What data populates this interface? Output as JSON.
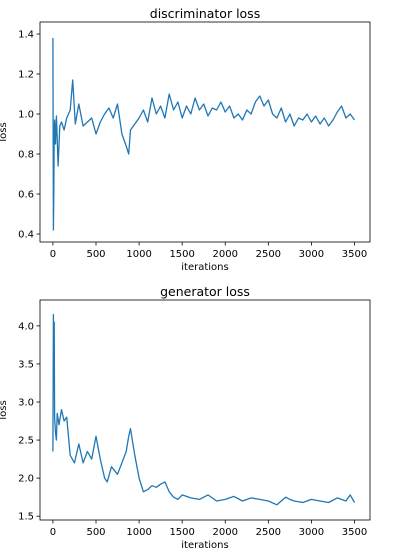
{
  "chart_data": [
    {
      "type": "line",
      "title": "discriminator loss",
      "xlabel": "iterations",
      "ylabel": "loss",
      "xlim": [
        -150,
        3680
      ],
      "ylim": [
        0.36,
        1.46
      ],
      "xticks": [
        0,
        500,
        1000,
        1500,
        2000,
        2500,
        3000,
        3500
      ],
      "xtick_labels": [
        "0",
        "500",
        "1000",
        "1500",
        "2000",
        "2500",
        "3000",
        "3500"
      ],
      "yticks": [
        0.4,
        0.6,
        0.8,
        1.0,
        1.2,
        1.4
      ],
      "ytick_labels": [
        "0.4",
        "0.6",
        "0.8",
        "1.0",
        "1.2",
        "1.4"
      ],
      "color": "#1f77b4",
      "grid": false,
      "series": [
        {
          "x": [
            0,
            5,
            10,
            15,
            20,
            30,
            40,
            50,
            60,
            80,
            100,
            130,
            160,
            200,
            230,
            260,
            300,
            350,
            400,
            450,
            500,
            550,
            600,
            650,
            700,
            750,
            800,
            850,
            880,
            900,
            950,
            1000,
            1050,
            1100,
            1150,
            1200,
            1250,
            1300,
            1350,
            1400,
            1450,
            1500,
            1550,
            1600,
            1650,
            1700,
            1750,
            1800,
            1850,
            1900,
            1950,
            2000,
            2050,
            2100,
            2150,
            2200,
            2250,
            2300,
            2350,
            2400,
            2450,
            2500,
            2550,
            2600,
            2650,
            2700,
            2750,
            2800,
            2850,
            2900,
            2950,
            3000,
            3050,
            3100,
            3150,
            3200,
            3250,
            3300,
            3350,
            3400,
            3450,
            3500
          ],
          "y": [
            1.38,
            0.42,
            0.6,
            0.9,
            0.97,
            0.85,
            0.99,
            0.88,
            0.74,
            0.94,
            0.96,
            0.92,
            0.98,
            1.02,
            1.17,
            0.95,
            1.05,
            0.94,
            0.96,
            0.98,
            0.9,
            0.96,
            1.0,
            1.03,
            0.98,
            1.05,
            0.9,
            0.84,
            0.8,
            0.92,
            0.95,
            0.98,
            1.02,
            0.96,
            1.08,
            1.0,
            1.04,
            0.98,
            1.1,
            1.02,
            1.06,
            0.98,
            1.04,
            1.0,
            1.08,
            1.02,
            1.05,
            0.99,
            1.03,
            1.02,
            1.06,
            1.01,
            1.04,
            0.98,
            1.0,
            0.97,
            1.02,
            1.0,
            1.06,
            1.09,
            1.04,
            1.07,
            1.0,
            0.98,
            1.03,
            0.96,
            1.0,
            0.94,
            0.98,
            0.97,
            1.0,
            0.96,
            0.99,
            0.95,
            0.98,
            0.94,
            0.97,
            1.01,
            1.04,
            0.98,
            1.0,
            0.97
          ]
        }
      ]
    },
    {
      "type": "line",
      "title": "generator loss",
      "xlabel": "iterations",
      "ylabel": "loss",
      "xlim": [
        -150,
        3680
      ],
      "ylim": [
        1.45,
        4.34
      ],
      "xticks": [
        0,
        500,
        1000,
        1500,
        2000,
        2500,
        3000,
        3500
      ],
      "xtick_labels": [
        "0",
        "500",
        "1000",
        "1500",
        "2000",
        "2500",
        "3000",
        "3500"
      ],
      "yticks": [
        1.5,
        2.0,
        2.5,
        3.0,
        3.5,
        4.0
      ],
      "ytick_labels": [
        "1.5",
        "2.0",
        "2.5",
        "3.0",
        "3.5",
        "4.0"
      ],
      "color": "#1f77b4",
      "grid": false,
      "series": [
        {
          "x": [
            0,
            5,
            10,
            15,
            20,
            30,
            40,
            50,
            70,
            100,
            130,
            160,
            200,
            250,
            300,
            350,
            400,
            450,
            500,
            550,
            600,
            630,
            680,
            750,
            800,
            850,
            880,
            900,
            950,
            1000,
            1050,
            1100,
            1150,
            1200,
            1250,
            1300,
            1350,
            1400,
            1450,
            1500,
            1600,
            1700,
            1800,
            1900,
            2000,
            2100,
            2200,
            2300,
            2400,
            2500,
            2600,
            2700,
            2750,
            2800,
            2900,
            3000,
            3100,
            3200,
            3300,
            3400,
            3450,
            3500
          ],
          "y": [
            2.35,
            4.15,
            3.4,
            4.05,
            2.8,
            2.6,
            2.5,
            2.85,
            2.7,
            2.9,
            2.75,
            2.8,
            2.3,
            2.2,
            2.45,
            2.2,
            2.35,
            2.25,
            2.55,
            2.25,
            2.0,
            1.95,
            2.15,
            2.05,
            2.2,
            2.35,
            2.55,
            2.65,
            2.3,
            2.0,
            1.82,
            1.85,
            1.9,
            1.88,
            1.92,
            1.95,
            1.82,
            1.75,
            1.72,
            1.78,
            1.74,
            1.72,
            1.78,
            1.7,
            1.72,
            1.76,
            1.7,
            1.74,
            1.72,
            1.7,
            1.65,
            1.75,
            1.72,
            1.7,
            1.68,
            1.72,
            1.7,
            1.68,
            1.74,
            1.7,
            1.78,
            1.68
          ]
        }
      ]
    }
  ]
}
